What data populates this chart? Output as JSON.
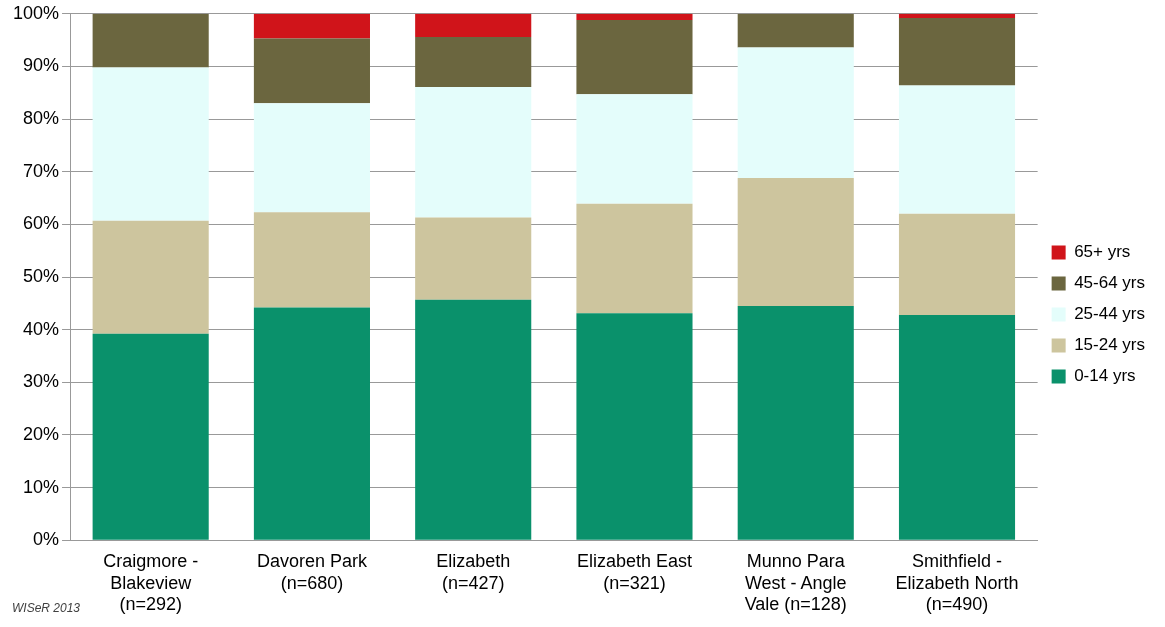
{
  "chart_data": {
    "type": "bar",
    "stacked": true,
    "categories": [
      "Craigmore - Blakeview (n=292)",
      "Davoren Park (n=680)",
      "Elizabeth (n=427)",
      "Elizabeth East (n=321)",
      "Munno Para West - Angle Vale (n=128)",
      "Smithfield - Elizabeth North (n=490)"
    ],
    "series": [
      {
        "name": "0-14 yrs",
        "color": "#0a916b",
        "values": [
          39.2,
          44.2,
          45.7,
          43.1,
          44.5,
          42.8
        ]
      },
      {
        "name": "15-24 yrs",
        "color": "#cdc59e",
        "values": [
          21.5,
          18.1,
          15.6,
          20.8,
          24.3,
          19.2
        ]
      },
      {
        "name": "25-44 yrs",
        "color": "#e4fdfb",
        "values": [
          29.1,
          20.7,
          24.8,
          20.8,
          24.8,
          24.4
        ]
      },
      {
        "name": "45-64 yrs",
        "color": "#6b663f",
        "values": [
          10.2,
          12.3,
          9.5,
          14.1,
          6.4,
          12.8
        ]
      },
      {
        "name": "65+ yrs",
        "color": "#d0141a",
        "values": [
          0,
          4.7,
          4.4,
          1.2,
          0,
          0.8
        ]
      }
    ],
    "ylim": [
      0,
      100
    ],
    "yticks": [
      {
        "value": 0,
        "label": "0%"
      },
      {
        "value": 10,
        "label": "10%"
      },
      {
        "value": 20,
        "label": "20%"
      },
      {
        "value": 30,
        "label": "30%"
      },
      {
        "value": 40,
        "label": "40%"
      },
      {
        "value": 50,
        "label": "50%"
      },
      {
        "value": 60,
        "label": "60%"
      },
      {
        "value": 70,
        "label": "70%"
      },
      {
        "value": 80,
        "label": "80%"
      },
      {
        "value": 90,
        "label": "90%"
      },
      {
        "value": 100,
        "label": "100%"
      }
    ],
    "grid": "y",
    "legend": "right",
    "annotations": [
      "WISeR 2013"
    ]
  }
}
